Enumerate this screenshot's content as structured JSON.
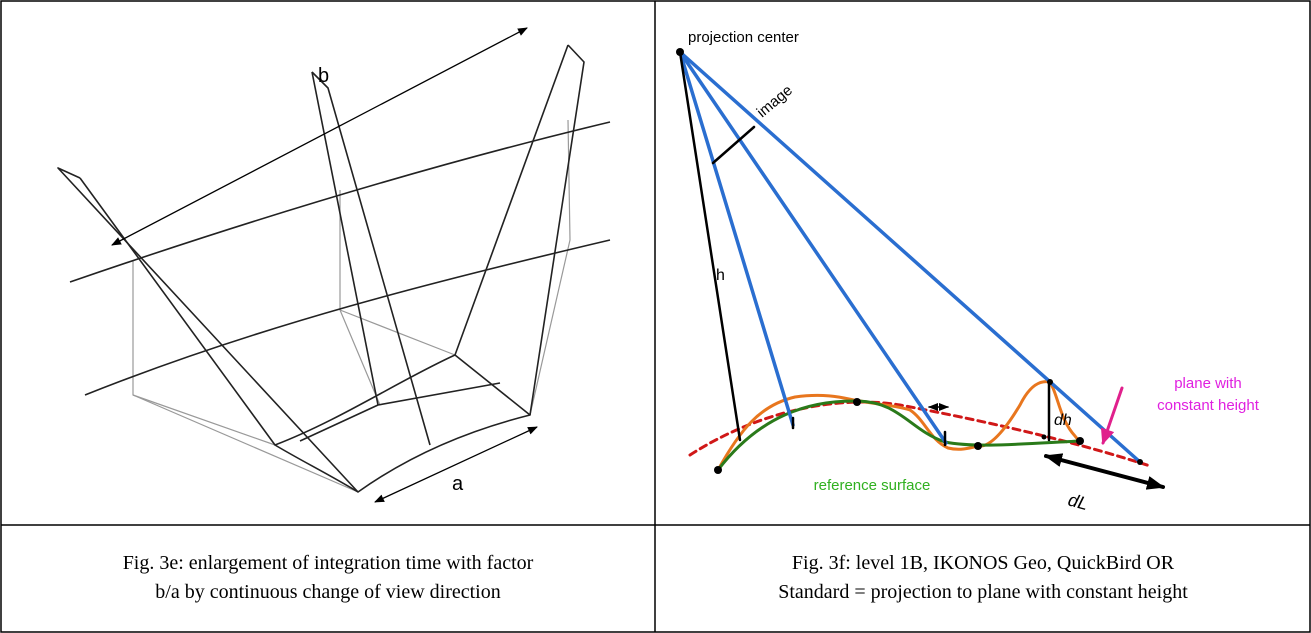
{
  "left": {
    "labels": {
      "b": "b",
      "a": "a"
    },
    "caption": [
      "Fig. 3e: enlargement of integration time with factor",
      "b/a by continuous change of view direction"
    ]
  },
  "right": {
    "labels": {
      "center": "projection center",
      "image": "image",
      "h": "h",
      "dh": "dh",
      "dL": "dL",
      "plane": [
        "plane with",
        "constant height"
      ],
      "reference": "reference surface"
    },
    "caption": [
      "Fig. 3f: level 1B, IKONOS Geo, QuickBird OR",
      "Standard = projection to plane with constant height"
    ]
  }
}
